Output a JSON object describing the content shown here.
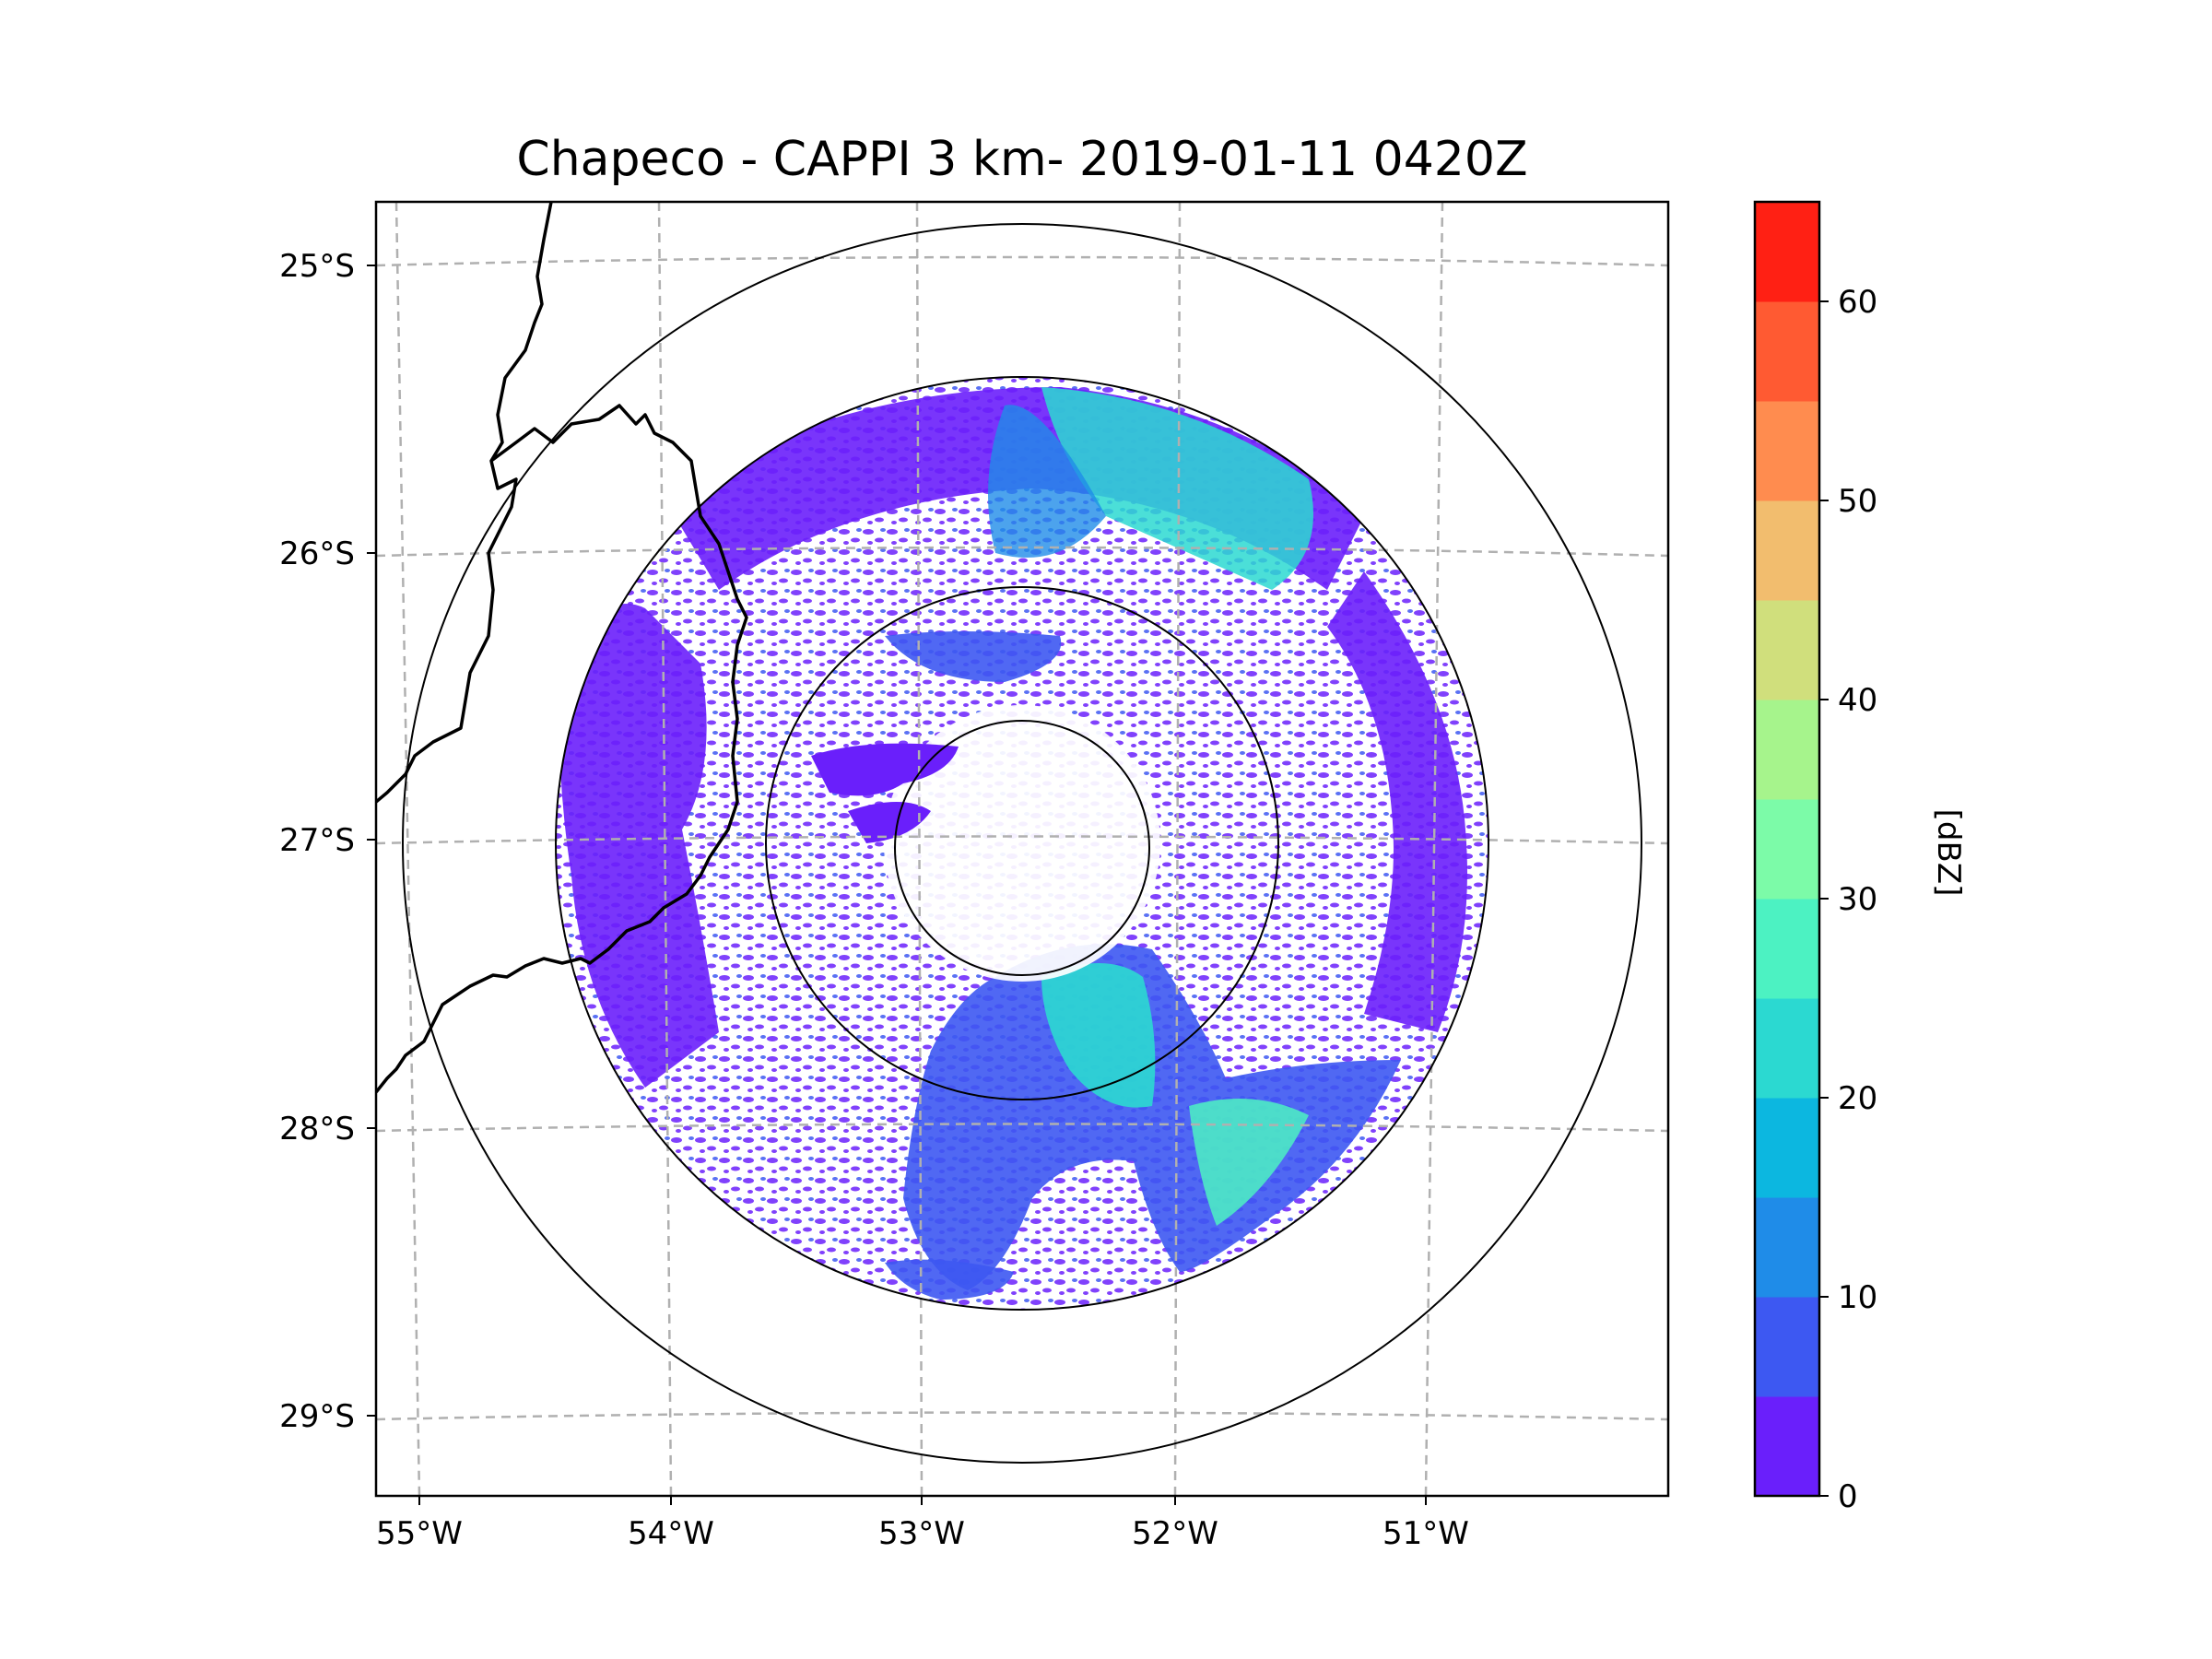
{
  "chart_data": {
    "type": "map",
    "title": "Chapeco - CAPPI 3 km- 2019-01-11 0420Z",
    "longitude_ticks": [
      "55°W",
      "54°W",
      "53°W",
      "52°W",
      "51°W"
    ],
    "latitude_ticks": [
      "25°S",
      "26°S",
      "27°S",
      "28°S",
      "29°S"
    ],
    "radar_site": {
      "name": "Chapeco",
      "lon": -52.6,
      "lat": -27.0
    },
    "range_rings": [
      "inner",
      "middle",
      "data-extent",
      "outer"
    ],
    "colorbar": {
      "label": "[dBZ]",
      "min": 0,
      "max": 65,
      "step": 5,
      "tick_labels": [
        "0",
        "10",
        "20",
        "30",
        "40",
        "50",
        "60"
      ],
      "colors": [
        "#6a1ffb",
        "#3d58f2",
        "#1f8ce8",
        "#0cb7e0",
        "#2bd9d1",
        "#4cf2c2",
        "#7cfba8",
        "#a6f48c",
        "#d0df7c",
        "#f2bd6e",
        "#ff8c4f",
        "#ff5a32",
        "#ff2014"
      ]
    },
    "description_fields": {
      "gridlines": "dashed gray graticule",
      "borders": "state/country boundaries in black"
    }
  }
}
